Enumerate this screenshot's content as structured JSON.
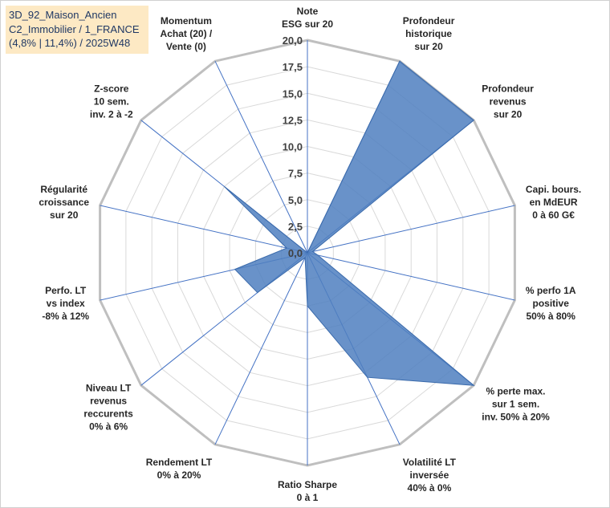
{
  "title_box": {
    "line1": "3D_92_Maison_Ancien",
    "line2": "C2_Immobilier / 1_FRANCE",
    "line3": "(4,8% | 11,4%) / 2025W48"
  },
  "chart_data": {
    "type": "radar",
    "r_range": [
      0,
      20
    ],
    "r_ticks": [
      "0,0",
      "2,5",
      "5,0",
      "7,5",
      "10,0",
      "12,5",
      "15,0",
      "17,5",
      "20,0"
    ],
    "grid": true,
    "fill_color": "#4f7fbf",
    "categories": [
      [
        "Note",
        "ESG sur 20"
      ],
      [
        "Profondeur",
        "historique",
        "sur 20"
      ],
      [
        "Profondeur",
        "revenus",
        "sur 20"
      ],
      [
        "Capi. bours.",
        "en MdEUR",
        "0 à 60 G€"
      ],
      [
        "% perfo 1A",
        "positive",
        "50% à 80%"
      ],
      [
        "% perte max.",
        "sur 1 sem.",
        "inv. 50% à 20%"
      ],
      [
        "Volatilité LT",
        "inversée",
        "40% à 0%"
      ],
      [
        "Ratio Sharpe",
        "0 à 1"
      ],
      [
        "Rendement LT",
        "0% à 20%"
      ],
      [
        "Niveau LT",
        "revenus",
        "reccurents",
        "0% à 6%"
      ],
      [
        "Perfo. LT",
        "vs index",
        "-8% à 12%"
      ],
      [
        "Régularité",
        "croissance",
        "sur 20"
      ],
      [
        "Z-score",
        "10 sem.",
        "inv. 2 à -2"
      ],
      [
        "Momentum",
        "Achat (20) /",
        "Vente (0)"
      ]
    ],
    "values": [
      0,
      20,
      20,
      0.5,
      1,
      20,
      13,
      5,
      0.5,
      6,
      7,
      2,
      10,
      0
    ]
  }
}
